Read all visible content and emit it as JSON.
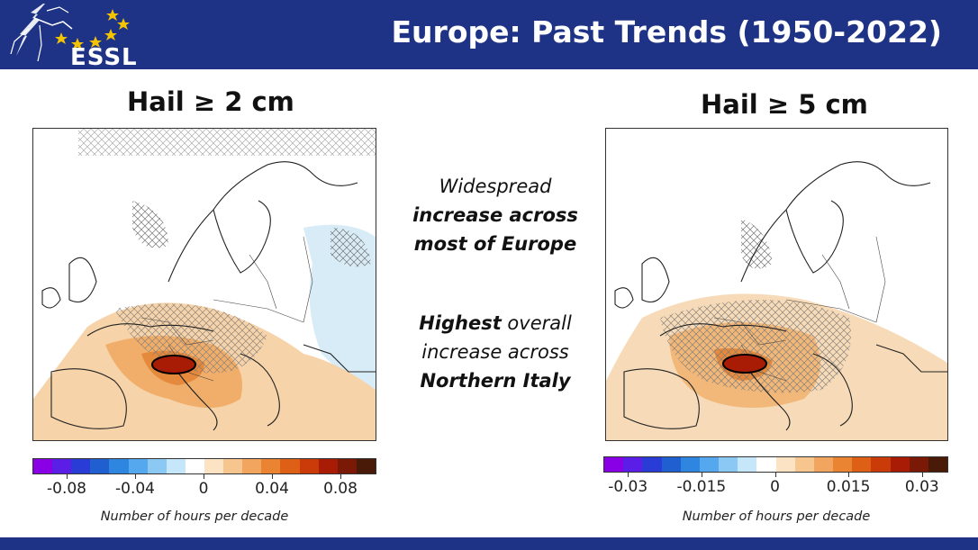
{
  "header": {
    "logo_text": "ESSL",
    "title": "Europe: Past Trends (1950-2022)"
  },
  "left_panel": {
    "title": "Hail ≥ 2 cm",
    "colorbar_ticks": [
      "-0.08",
      "-0.04",
      "0",
      "0.04",
      "0.08"
    ],
    "colorbar_range": [
      -0.1,
      0.1
    ],
    "unit_label": "Number of hours per decade"
  },
  "right_panel": {
    "title": "Hail ≥ 5 cm",
    "colorbar_ticks": [
      "-0.03",
      "-0.015",
      "0",
      "0.015",
      "0.03"
    ],
    "colorbar_range": [
      -0.035,
      0.035
    ],
    "unit_label": "Number of hours per decade"
  },
  "center_notes": {
    "line1": "Widespread",
    "line2": "increase across",
    "line3": "most of Europe",
    "line4_bold": "Highest",
    "line4_rest": " overall",
    "line5": "increase across",
    "line6": "Northern Italy"
  },
  "colors": {
    "brand_blue": "#1f3386",
    "colorbar": [
      "#8a00e6",
      "#5a1ee6",
      "#2a3cd6",
      "#1f5fd0",
      "#2f86e0",
      "#56a8ee",
      "#8cc8f4",
      "#c6e6fa",
      "#ffffff",
      "#fbe3c4",
      "#f7c68f",
      "#f2a55e",
      "#ea8432",
      "#de5f16",
      "#cb3b09",
      "#a81c06",
      "#7a1a06",
      "#4a1a08"
    ]
  }
}
